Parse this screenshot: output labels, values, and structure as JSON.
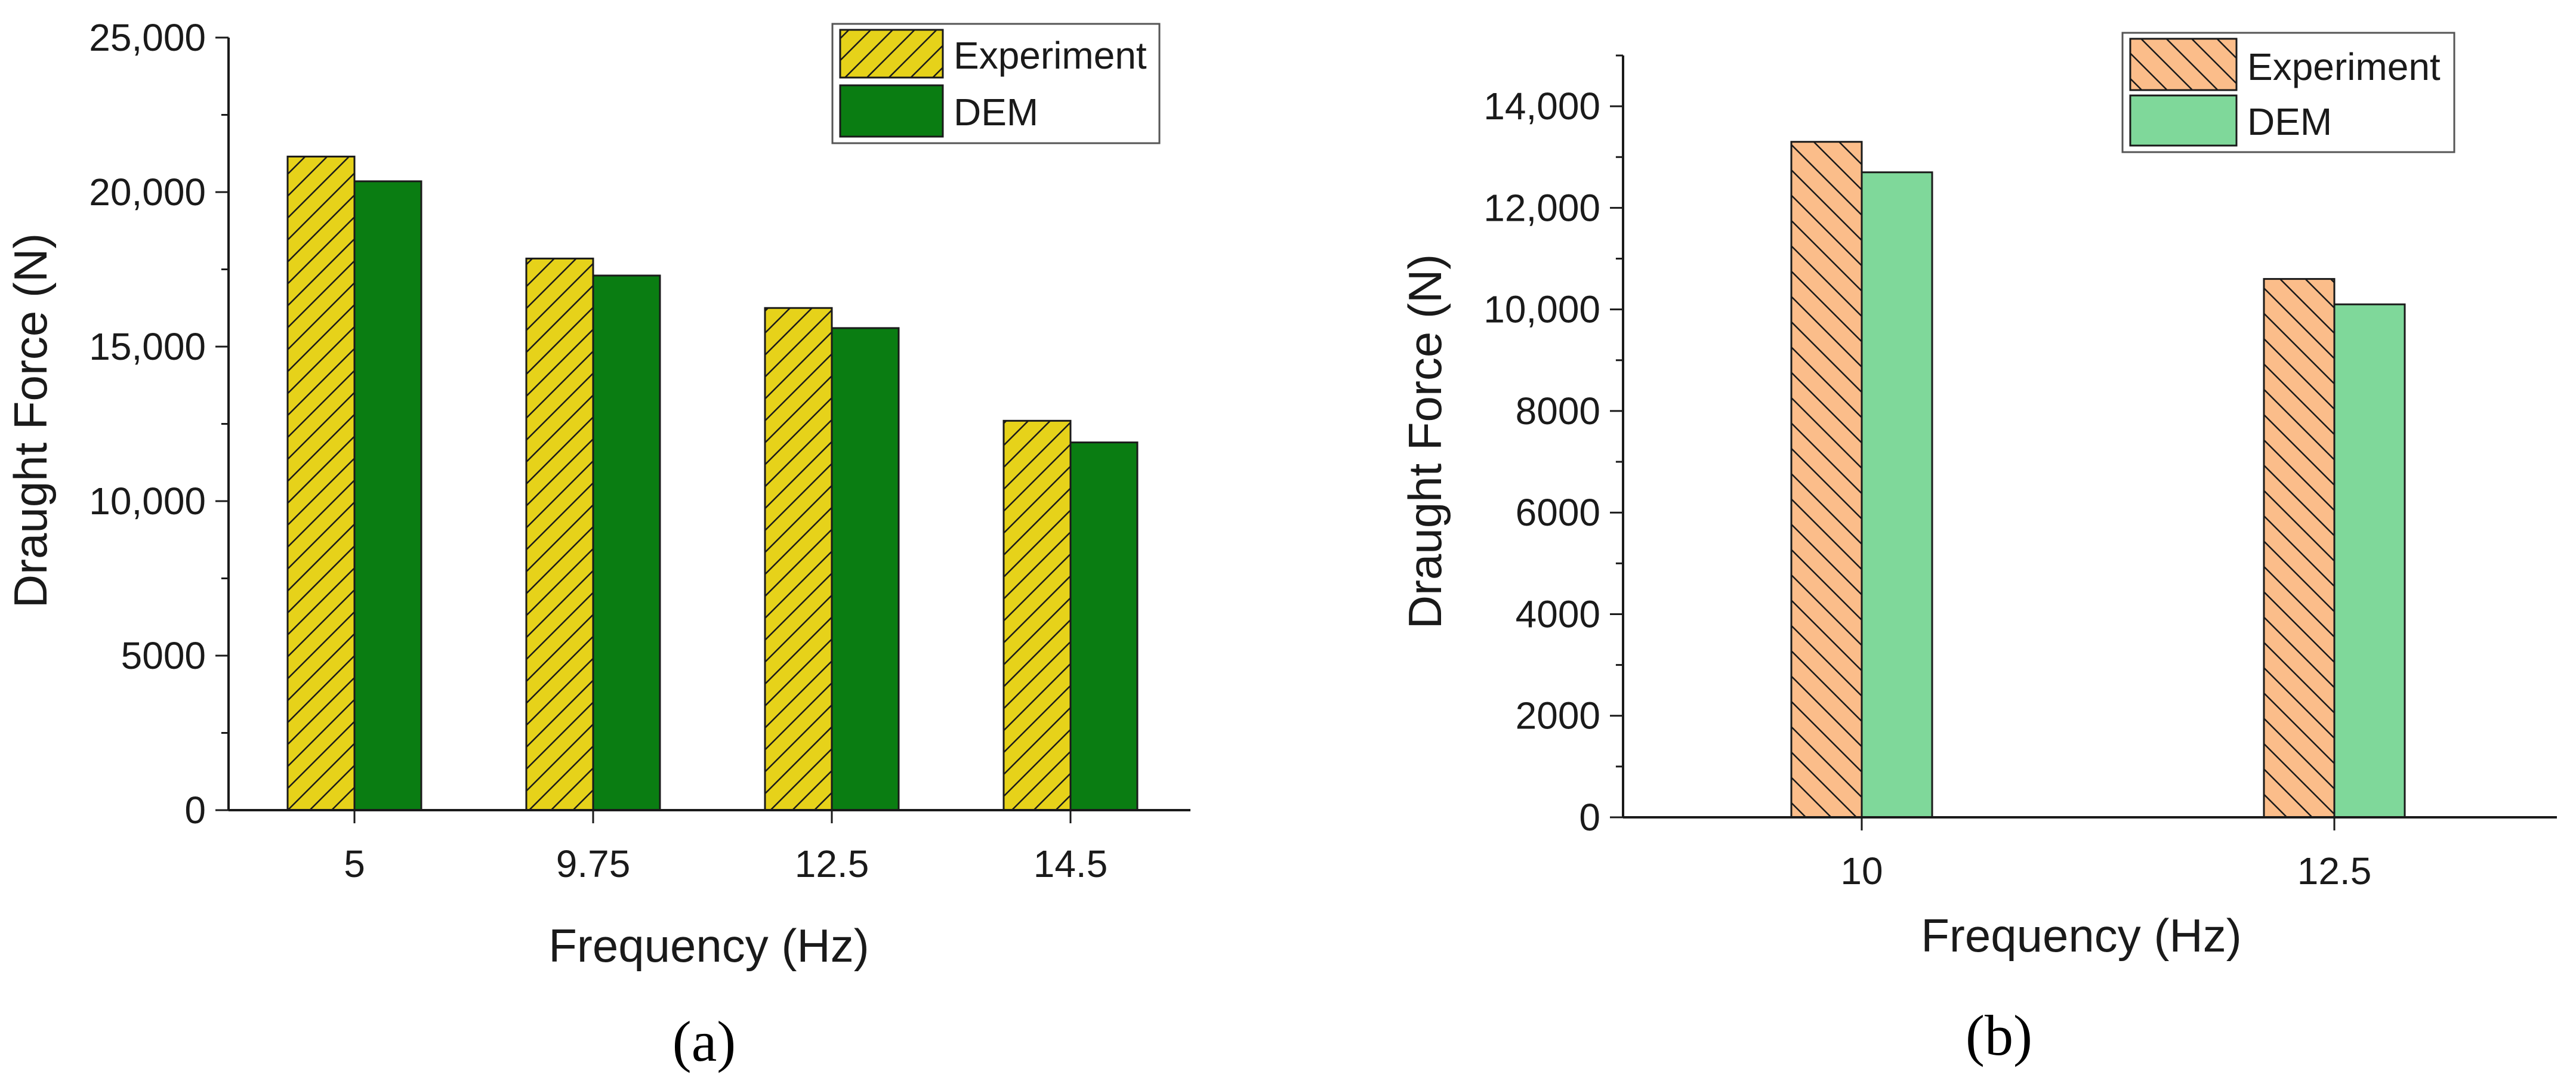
{
  "chart_data": [
    {
      "id": "a",
      "type": "bar",
      "caption": "(a)",
      "xlabel": "Frequency (Hz)",
      "ylabel": "Draught Force (N)",
      "categories": [
        "5",
        "9.75",
        "12.5",
        "14.5"
      ],
      "ylim": [
        0,
        25000
      ],
      "yticks": [
        0,
        5000,
        10000,
        15000,
        20000,
        25000
      ],
      "ytick_labels": [
        "0",
        "5000",
        "10,000",
        "15,000",
        "20,000",
        "25,000"
      ],
      "series": [
        {
          "name": "Experiment",
          "values": [
            21150,
            17850,
            16250,
            12600
          ],
          "color": "#e6d21a",
          "hatch": "/"
        },
        {
          "name": "DEM",
          "values": [
            20350,
            17300,
            15600,
            11900
          ],
          "color": "#0a7d12",
          "hatch": "none"
        }
      ],
      "legend": "top-right",
      "grid": false
    },
    {
      "id": "b",
      "type": "bar",
      "caption": "(b)",
      "xlabel": "Frequency (Hz)",
      "ylabel": "Draught Force (N)",
      "categories": [
        "10",
        "12.5"
      ],
      "ylim": [
        0,
        15000
      ],
      "yticks": [
        0,
        2000,
        4000,
        6000,
        8000,
        10000,
        12000,
        14000
      ],
      "ytick_labels": [
        "0",
        "2000",
        "4000",
        "6000",
        "8000",
        "10,000",
        "12,000",
        "14,000"
      ],
      "series": [
        {
          "name": "Experiment",
          "values": [
            13300,
            10600
          ],
          "color": "#fbbd8a",
          "hatch": "\\"
        },
        {
          "name": "DEM",
          "values": [
            12700,
            10100
          ],
          "color": "#7fd89a",
          "hatch": "none"
        }
      ],
      "legend": "top-right",
      "grid": false
    }
  ]
}
